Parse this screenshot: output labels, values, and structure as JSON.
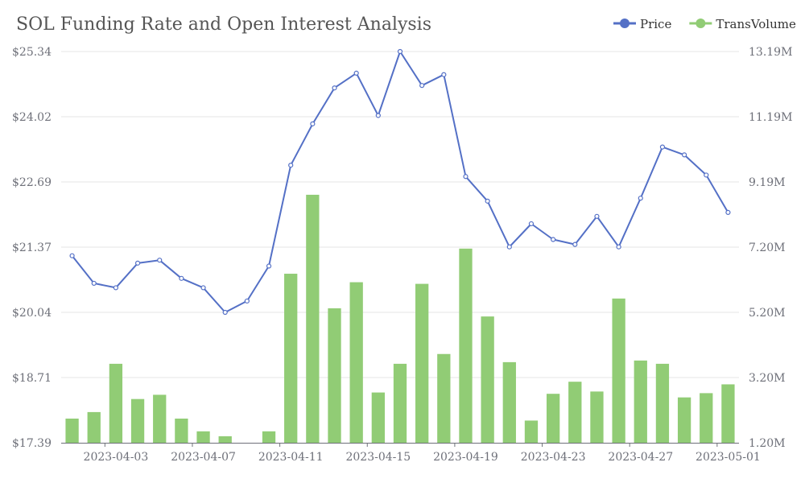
{
  "chart_data": {
    "type": "bar+line",
    "title": "SOL Funding Rate and Open Interest Analysis",
    "legend": {
      "placement": "top-right",
      "items": [
        {
          "name": "Price",
          "color": "#5470c6",
          "marker": "line-circle"
        },
        {
          "name": "TransVolume",
          "color": "#91cc75",
          "marker": "line-circle"
        }
      ]
    },
    "dates": [
      "2023-04-01",
      "2023-04-02",
      "2023-04-03",
      "2023-04-04",
      "2023-04-05",
      "2023-04-06",
      "2023-04-07",
      "2023-04-08",
      "2023-04-09",
      "2023-04-10",
      "2023-04-11",
      "2023-04-12",
      "2023-04-13",
      "2023-04-14",
      "2023-04-15",
      "2023-04-16",
      "2023-04-17",
      "2023-04-18",
      "2023-04-19",
      "2023-04-20",
      "2023-04-21",
      "2023-04-22",
      "2023-04-23",
      "2023-04-24",
      "2023-04-25",
      "2023-04-26",
      "2023-04-27",
      "2023-04-28",
      "2023-04-29",
      "2023-04-30",
      "2023-05-01"
    ],
    "x_tick_labels": [
      "2023-04-03",
      "2023-04-07",
      "2023-04-11",
      "2023-04-15",
      "2023-04-19",
      "2023-04-23",
      "2023-04-27",
      "2023-05-01"
    ],
    "series": [
      {
        "name": "Price",
        "type": "line",
        "axis": "left",
        "color": "#5470c6",
        "values": [
          21.19,
          20.63,
          20.54,
          21.04,
          21.1,
          20.73,
          20.54,
          20.04,
          20.27,
          20.98,
          23.03,
          23.87,
          24.6,
          24.9,
          24.04,
          25.34,
          24.65,
          24.87,
          22.8,
          22.3,
          21.37,
          21.84,
          21.52,
          21.42,
          21.99,
          21.37,
          22.36,
          23.4,
          23.24,
          22.83,
          22.07
        ]
      },
      {
        "name": "TransVolume",
        "type": "bar",
        "axis": "right",
        "color": "#91cc75",
        "values": [
          1.94,
          2.14,
          3.62,
          2.54,
          2.67,
          1.94,
          1.55,
          1.4,
          1.1,
          1.55,
          6.38,
          8.8,
          5.32,
          6.12,
          2.74,
          3.62,
          6.07,
          3.92,
          7.15,
          5.07,
          3.67,
          1.88,
          2.7,
          3.07,
          2.77,
          5.62,
          3.72,
          3.62,
          2.59,
          2.72,
          2.99
        ]
      }
    ],
    "y_left": {
      "tick_labels": [
        "$17.39",
        "$18.71",
        "$20.04",
        "$21.37",
        "$22.69",
        "$24.02",
        "$25.34"
      ],
      "ylim": [
        17.39,
        25.34
      ]
    },
    "y_right": {
      "tick_labels": [
        "1.20M",
        "3.20M",
        "5.20M",
        "7.20M",
        "9.19M",
        "11.19M",
        "13.19M"
      ],
      "ylim": [
        1.2,
        13.19
      ],
      "unit": "M"
    },
    "grid": true
  }
}
